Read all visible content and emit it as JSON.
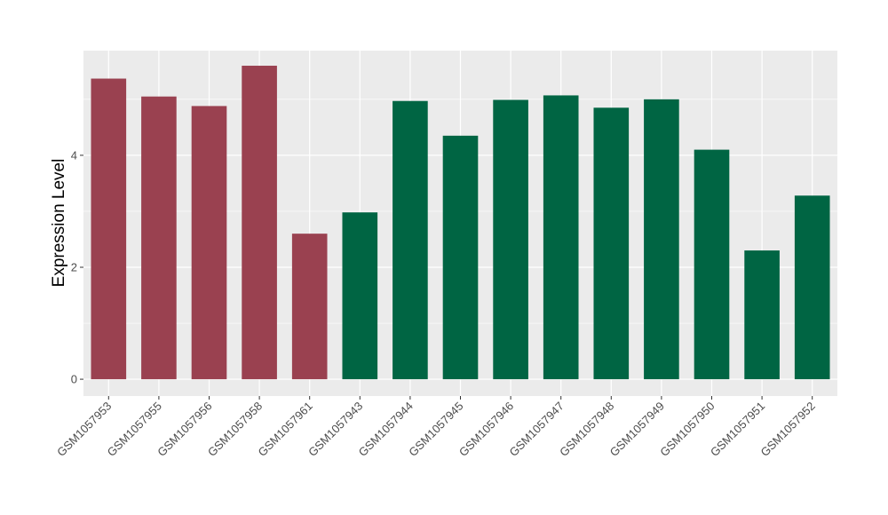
{
  "chart_data": {
    "type": "bar",
    "ylabel": "Expression Level",
    "xlabel": "",
    "ylim": [
      -0.3,
      5.87
    ],
    "yticks": [
      0,
      2,
      4
    ],
    "grid": true,
    "categories": [
      "GSM1057953",
      "GSM1057955",
      "GSM1057956",
      "GSM1057958",
      "GSM1057961",
      "GSM1057943",
      "GSM1057944",
      "GSM1057945",
      "GSM1057946",
      "GSM1057947",
      "GSM1057948",
      "GSM1057949",
      "GSM1057950",
      "GSM1057951",
      "GSM1057952"
    ],
    "values": [
      5.37,
      5.05,
      4.88,
      5.6,
      2.6,
      2.98,
      4.97,
      4.35,
      4.99,
      5.07,
      4.85,
      5.0,
      4.1,
      2.3,
      3.28
    ],
    "groups": [
      0,
      0,
      0,
      0,
      0,
      1,
      1,
      1,
      1,
      1,
      1,
      1,
      1,
      1,
      1
    ],
    "group_colors": [
      "#9a4150",
      "#006543"
    ],
    "panel_background": "#ebebeb",
    "grid_color": "#ffffff"
  }
}
